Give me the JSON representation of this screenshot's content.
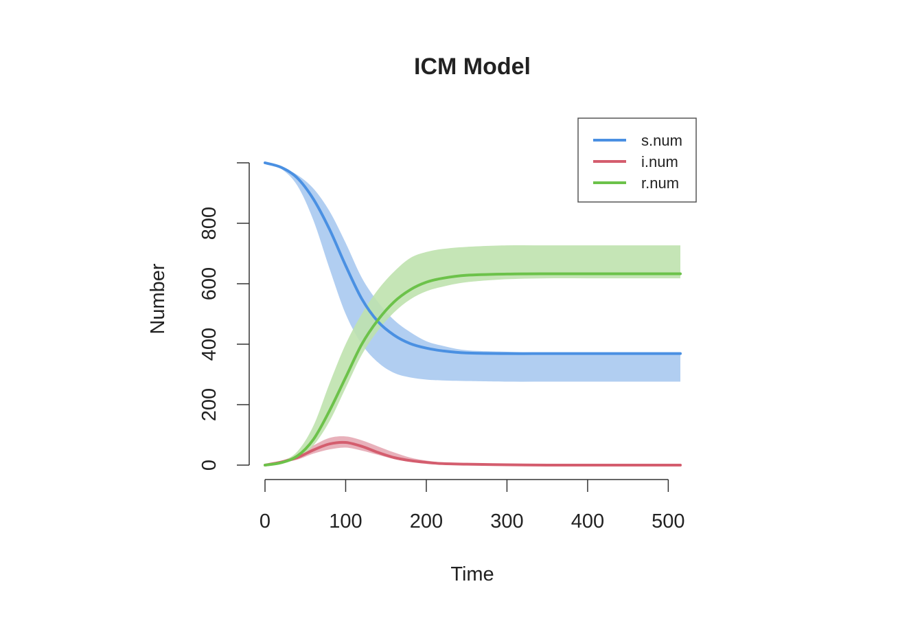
{
  "chart_data": {
    "type": "line",
    "title": "ICM Model",
    "xlabel": "Time",
    "ylabel": "Number",
    "xlim": [
      0,
      515
    ],
    "ylim": [
      0,
      1000
    ],
    "x_ticks": [
      0,
      100,
      200,
      300,
      400,
      500
    ],
    "y_ticks": [
      0,
      200,
      400,
      600,
      800
    ],
    "x_tick_labels": [
      "0",
      "100",
      "200",
      "300",
      "400",
      "500"
    ],
    "y_tick_labels": [
      "0",
      "200",
      "400",
      "600",
      "800"
    ],
    "grid": false,
    "legend_position": "top-right",
    "x": [
      0,
      20,
      40,
      60,
      80,
      100,
      120,
      140,
      160,
      180,
      200,
      220,
      250,
      300,
      350,
      400,
      450,
      500,
      515
    ],
    "series": [
      {
        "name": "s.num",
        "color": "#4A90E2",
        "band_color": "#A9C9EF",
        "values": [
          1000,
          985,
          950,
          880,
          780,
          660,
          550,
          475,
          430,
          402,
          387,
          378,
          371,
          369,
          369,
          369,
          369,
          369,
          369
        ],
        "band_lower": [
          1000,
          980,
          925,
          810,
          650,
          500,
          400,
          340,
          305,
          290,
          283,
          280,
          278,
          276,
          276,
          276,
          276,
          276,
          276
        ],
        "band_upper": [
          1000,
          985,
          960,
          915,
          840,
          735,
          620,
          540,
          480,
          440,
          410,
          395,
          380,
          375,
          372,
          372,
          372,
          372,
          372
        ]
      },
      {
        "name": "i.num",
        "color": "#D45D6E",
        "band_color": "#E5A9B4",
        "values": [
          0,
          10,
          25,
          50,
          70,
          75,
          62,
          42,
          25,
          15,
          9,
          5,
          3,
          1,
          0,
          0,
          0,
          0,
          0
        ],
        "band_lower": [
          0,
          8,
          18,
          38,
          52,
          58,
          48,
          34,
          20,
          11,
          6,
          3,
          1,
          0,
          0,
          0,
          0,
          0,
          0
        ],
        "band_upper": [
          0,
          14,
          35,
          65,
          90,
          95,
          82,
          62,
          42,
          25,
          15,
          9,
          5,
          2,
          1,
          1,
          1,
          1,
          1
        ]
      },
      {
        "name": "r.num",
        "color": "#6CC24A",
        "band_color": "#BFE2AE",
        "values": [
          0,
          8,
          30,
          85,
          180,
          290,
          400,
          480,
          540,
          580,
          605,
          618,
          628,
          632,
          633,
          633,
          633,
          633,
          633
        ],
        "band_lower": [
          0,
          6,
          22,
          65,
          145,
          255,
          365,
          445,
          505,
          548,
          575,
          590,
          605,
          615,
          618,
          618,
          618,
          618,
          618
        ],
        "band_upper": [
          0,
          12,
          45,
          130,
          270,
          400,
          500,
          580,
          640,
          685,
          705,
          715,
          722,
          727,
          727,
          727,
          727,
          727,
          727
        ]
      }
    ]
  }
}
